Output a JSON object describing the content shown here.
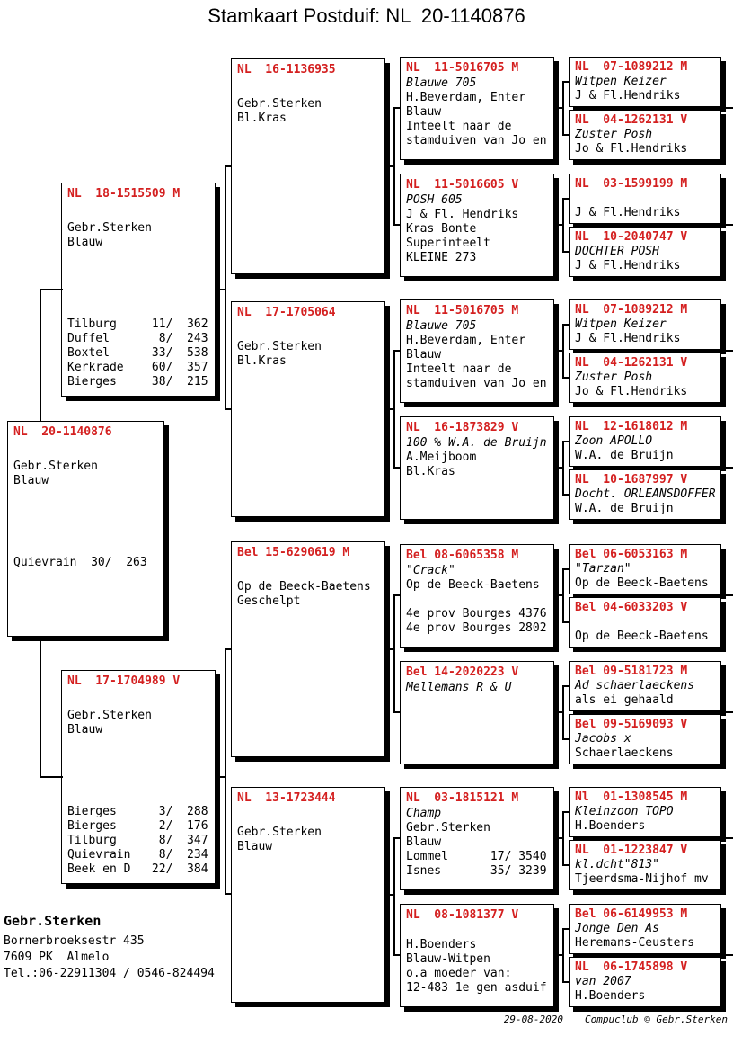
{
  "title": "Stamkaart Postduif: NL  20-1140876",
  "colors": {
    "ring_red": "#d42020"
  },
  "subject": {
    "ring": "NL  20-1140876",
    "lines": [
      "Gebr.Sterken",
      "Blauw"
    ],
    "races": [
      "Quievrain  30/  263"
    ]
  },
  "parents": [
    {
      "ring": "NL  18-1515509 M",
      "lines": [
        "Gebr.Sterken",
        "Blauw"
      ],
      "races": [
        "Tilburg     11/  362",
        "Duffel       8/  243",
        "Boxtel      33/  538",
        "Kerkrade    60/  357",
        "Bierges     38/  215"
      ]
    },
    {
      "ring": "NL  17-1704989 V",
      "lines": [
        "Gebr.Sterken",
        "Blauw"
      ],
      "races": [
        "Bierges      3/  288",
        "Bierges      2/  176",
        "Tilburg      8/  347",
        "Quievrain    8/  234",
        "Beek en D   22/  384"
      ]
    }
  ],
  "grandparents": [
    {
      "ring": "NL  16-1136935",
      "lines": [
        "Gebr.Sterken",
        "Bl.Kras"
      ]
    },
    {
      "ring": "NL  17-1705064",
      "lines": [
        "Gebr.Sterken",
        "Bl.Kras"
      ]
    },
    {
      "ring": "Bel 15-6290619 M",
      "lines": [
        "Op de Beeck-Baetens",
        "Geschelpt"
      ]
    },
    {
      "ring": "NL  13-1723444",
      "lines": [
        "Gebr.Sterken",
        "Blauw"
      ]
    }
  ],
  "great_grandparents": [
    {
      "ring": "NL  11-5016705 M",
      "name": "Blauwe 705",
      "lines": [
        "H.Beverdam, Enter",
        "Blauw",
        "Inteelt naar de",
        "stamduiven van Jo en"
      ]
    },
    {
      "ring": "NL  11-5016605 V",
      "name": "POSH 605",
      "lines": [
        "J & Fl. Hendriks",
        "Kras Bonte",
        "Superinteelt",
        "KLEINE 273"
      ]
    },
    {
      "ring": "NL  11-5016705 M",
      "name": "Blauwe 705",
      "lines": [
        "H.Beverdam, Enter",
        "Blauw",
        "Inteelt naar de",
        "stamduiven van Jo en"
      ]
    },
    {
      "ring": "NL  16-1873829 V",
      "name": "100 % W.A. de Bruijn",
      "lines": [
        "A.Meijboom",
        "Bl.Kras"
      ]
    },
    {
      "ring": "Bel 08-6065358 M",
      "name": "\"Crack\"",
      "lines": [
        "Op de Beeck-Baetens",
        "",
        "4e prov Bourges 4376",
        "4e prov Bourges 2802"
      ]
    },
    {
      "ring": "Bel 14-2020223 V",
      "name": "Mellemans R & U",
      "lines": []
    },
    {
      "ring": "NL  03-1815121 M",
      "name": "Champ",
      "lines": [
        "Gebr.Sterken",
        "Blauw",
        "Lommel      17/ 3540",
        "Isnes       35/ 3239"
      ]
    },
    {
      "ring": "NL  08-1081377 V",
      "name": "",
      "lines": [
        "H.Boenders",
        "Blauw-Witpen",
        "o.a moeder van:",
        "12-483 1e gen asduif"
      ]
    }
  ],
  "gg_grandparents": [
    {
      "ring": "NL  07-1089212 M",
      "name": "Witpen Keizer",
      "lines": [
        "J & Fl.Hendriks"
      ]
    },
    {
      "ring": "NL  04-1262131 V",
      "name": "Zuster Posh",
      "lines": [
        "Jo & Fl.Hendriks"
      ]
    },
    {
      "ring": "NL  03-1599199 M",
      "name": "",
      "lines": [
        "J & Fl.Hendriks"
      ]
    },
    {
      "ring": "NL  10-2040747 V",
      "name": "DOCHTER POSH",
      "lines": [
        "J & Fl.Hendriks"
      ]
    },
    {
      "ring": "NL  07-1089212 M",
      "name": "Witpen Keizer",
      "lines": [
        "J & Fl.Hendriks"
      ]
    },
    {
      "ring": "NL  04-1262131 V",
      "name": "Zuster Posh",
      "lines": [
        "Jo & Fl.Hendriks"
      ]
    },
    {
      "ring": "NL  12-1618012 M",
      "name": "Zoon APOLLO",
      "lines": [
        "W.A. de Bruijn"
      ]
    },
    {
      "ring": "NL  10-1687997 V",
      "name": "Docht. ORLEANSDOFFER",
      "lines": [
        "W.A. de Bruijn"
      ]
    },
    {
      "ring": "Bel 06-6053163 M",
      "name": "\"Tarzan\"",
      "lines": [
        "Op de Beeck-Baetens"
      ]
    },
    {
      "ring": "Bel 04-6033203 V",
      "name": "",
      "lines": [
        "Op de Beeck-Baetens"
      ]
    },
    {
      "ring": "Bel 09-5181723 M",
      "name": "Ad schaerlaeckens",
      "lines": [
        "als ei gehaald"
      ]
    },
    {
      "ring": "Bel 09-5169093 V",
      "name": "Jacobs x",
      "lines": [
        "Schaerlaeckens"
      ]
    },
    {
      "ring": "Nl  01-1308545 M",
      "name": "Kleinzoon TOPO",
      "lines": [
        "H.Boenders"
      ]
    },
    {
      "ring": "NL  01-1223847 V",
      "name": "kl.dcht\"813\"",
      "lines": [
        "Tjeerdsma-Nijhof mv"
      ]
    },
    {
      "ring": "Bel 06-6149953 M",
      "name": "Jonge Den As",
      "lines": [
        "Heremans-Ceusters"
      ]
    },
    {
      "ring": "NL  06-1745898 V",
      "name": "van 2007",
      "lines": [
        "H.Boenders"
      ]
    }
  ],
  "owner": {
    "name": "Gebr.Sterken",
    "address1": "Bornerbroeksestr 435",
    "address2": "7609 PK  Almelo",
    "phone": "Tel.:06-22911304 / 0546-824494"
  },
  "footer": {
    "date": "29-08-2020",
    "credit": "Compuclub © Gebr.Sterken"
  }
}
